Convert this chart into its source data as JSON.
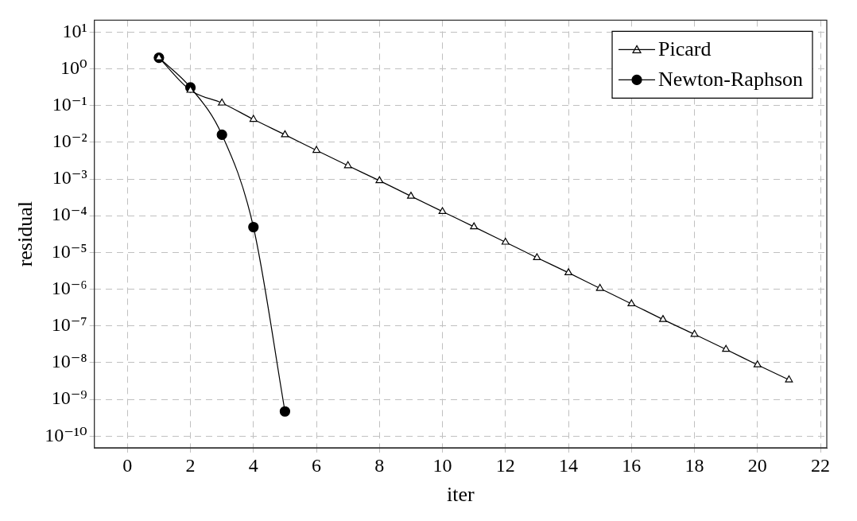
{
  "chart_data": {
    "type": "line",
    "xlabel": "iter",
    "ylabel": "residual",
    "xlim": [
      -1.05,
      22.2
    ],
    "xticks": [
      0,
      2,
      4,
      6,
      8,
      10,
      12,
      14,
      16,
      18,
      20,
      22
    ],
    "ylim": [
      4.8e-11,
      21
    ],
    "yticks": [
      {
        "value": 1e-10,
        "label": "10⁻¹⁰"
      },
      {
        "value": 1e-09,
        "label": "10⁻⁹"
      },
      {
        "value": 1e-08,
        "label": "10⁻⁸"
      },
      {
        "value": 1e-07,
        "label": "10⁻⁷"
      },
      {
        "value": 1e-06,
        "label": "10⁻⁶"
      },
      {
        "value": 1e-05,
        "label": "10⁻⁵"
      },
      {
        "value": 0.0001,
        "label": "10⁻⁴"
      },
      {
        "value": 0.001,
        "label": "10⁻³"
      },
      {
        "value": 0.01,
        "label": "10⁻²"
      },
      {
        "value": 0.1,
        "label": "10⁻¹"
      },
      {
        "value": 1,
        "label": "10⁰"
      },
      {
        "value": 10,
        "label": "10¹"
      }
    ],
    "log": "y",
    "grid": true,
    "legend": "top right",
    "series": [
      {
        "name": "Picard",
        "color": "#000000",
        "marker": "triangle",
        "x": [
          1,
          2,
          3,
          4,
          5,
          6,
          7,
          8,
          9,
          10,
          11,
          12,
          13,
          14,
          15,
          16,
          17,
          18,
          19,
          20,
          21
        ],
        "values": [
          2.0,
          0.26,
          0.117,
          0.042,
          0.016,
          0.006,
          0.0023,
          0.0009,
          0.00034,
          0.00013,
          5e-05,
          1.9e-05,
          7.2e-06,
          2.8e-06,
          1.05e-06,
          4e-07,
          1.5e-07,
          5.9e-08,
          2.3e-08,
          8.7e-09,
          3.4e-09
        ]
      },
      {
        "name": "Newton-Raphson",
        "color": "#000000",
        "marker": "circle",
        "x": [
          1,
          2,
          3,
          4,
          5
        ],
        "values": [
          2.0,
          0.31,
          0.016,
          4.9e-05,
          4.7e-10
        ]
      }
    ]
  }
}
